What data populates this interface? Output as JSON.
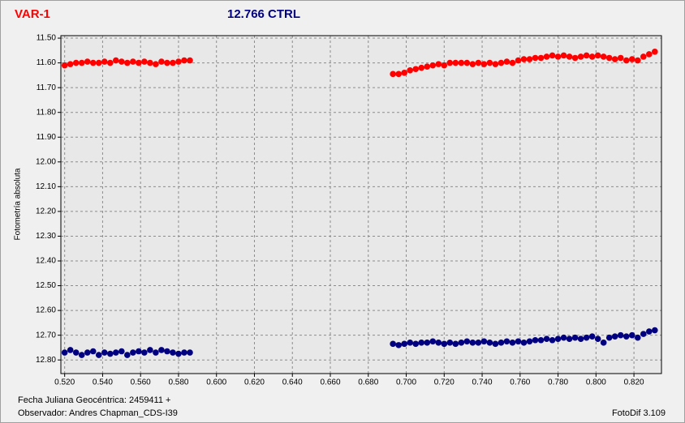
{
  "chart_data": {
    "type": "scatter",
    "ylabel": "Fotometría absoluta",
    "xlabel": "Fecha Juliana Geocéntrica: 2459411 +",
    "observer": "Observador: Andres Chapman_CDS-I39",
    "software": "FotoDif 3.109",
    "xlim": [
      0.518,
      0.8345
    ],
    "ylim": [
      11.49,
      12.855
    ],
    "y_reversed": true,
    "grid": true,
    "xticks": [
      {
        "value": 0.52,
        "label": "0.520"
      },
      {
        "value": 0.54,
        "label": "0.540"
      },
      {
        "value": 0.56,
        "label": "0.560"
      },
      {
        "value": 0.58,
        "label": "0.580"
      },
      {
        "value": 0.6,
        "label": "0.600"
      },
      {
        "value": 0.62,
        "label": "0.620"
      },
      {
        "value": 0.64,
        "label": "0.640"
      },
      {
        "value": 0.66,
        "label": "0.660"
      },
      {
        "value": 0.68,
        "label": "0.680"
      },
      {
        "value": 0.7,
        "label": "0.700"
      },
      {
        "value": 0.72,
        "label": "0.720"
      },
      {
        "value": 0.74,
        "label": "0.740"
      },
      {
        "value": 0.76,
        "label": "0.760"
      },
      {
        "value": 0.78,
        "label": "0.780"
      },
      {
        "value": 0.8,
        "label": "0.800"
      },
      {
        "value": 0.82,
        "label": "0.820"
      }
    ],
    "yticks": [
      {
        "value": 11.5,
        "label": "11.50"
      },
      {
        "value": 11.6,
        "label": "11.60"
      },
      {
        "value": 11.7,
        "label": "11.70"
      },
      {
        "value": 11.8,
        "label": "11.80"
      },
      {
        "value": 11.9,
        "label": "11.90"
      },
      {
        "value": 12.0,
        "label": "12.00"
      },
      {
        "value": 12.1,
        "label": "12.10"
      },
      {
        "value": 12.2,
        "label": "12.20"
      },
      {
        "value": 12.3,
        "label": "12.30"
      },
      {
        "value": 12.4,
        "label": "12.40"
      },
      {
        "value": 12.5,
        "label": "12.50"
      },
      {
        "value": 12.6,
        "label": "12.60"
      },
      {
        "value": 12.7,
        "label": "12.70"
      },
      {
        "value": 12.8,
        "label": "12.80"
      }
    ],
    "x": [
      0.52,
      0.523,
      0.526,
      0.529,
      0.532,
      0.535,
      0.538,
      0.541,
      0.544,
      0.547,
      0.55,
      0.553,
      0.556,
      0.559,
      0.562,
      0.565,
      0.568,
      0.571,
      0.574,
      0.577,
      0.58,
      0.583,
      0.586,
      0.693,
      0.696,
      0.699,
      0.702,
      0.705,
      0.708,
      0.711,
      0.714,
      0.717,
      0.72,
      0.723,
      0.726,
      0.729,
      0.732,
      0.735,
      0.738,
      0.741,
      0.744,
      0.747,
      0.75,
      0.753,
      0.756,
      0.759,
      0.762,
      0.765,
      0.768,
      0.771,
      0.774,
      0.777,
      0.78,
      0.783,
      0.786,
      0.789,
      0.792,
      0.795,
      0.798,
      0.801,
      0.804,
      0.807,
      0.81,
      0.813,
      0.816,
      0.819,
      0.822,
      0.825,
      0.828,
      0.831
    ],
    "series": [
      {
        "name": "VAR-1",
        "color": "#ff0000",
        "values": [
          11.61,
          11.605,
          11.6,
          11.6,
          11.595,
          11.6,
          11.6,
          11.595,
          11.6,
          11.59,
          11.595,
          11.6,
          11.595,
          11.6,
          11.595,
          11.6,
          11.605,
          11.595,
          11.6,
          11.6,
          11.595,
          11.59,
          11.59,
          11.645,
          11.645,
          11.64,
          11.63,
          11.625,
          11.62,
          11.615,
          11.61,
          11.605,
          11.61,
          11.6,
          11.6,
          11.6,
          11.6,
          11.605,
          11.6,
          11.605,
          11.6,
          11.605,
          11.6,
          11.595,
          11.6,
          11.59,
          11.585,
          11.585,
          11.58,
          11.58,
          11.575,
          11.57,
          11.575,
          11.57,
          11.575,
          11.58,
          11.575,
          11.57,
          11.575,
          11.57,
          11.575,
          11.58,
          11.585,
          11.58,
          11.59,
          11.585,
          11.59,
          11.575,
          11.565,
          11.555
        ]
      },
      {
        "name": "12.766 CTRL",
        "color": "#000080",
        "values": [
          12.77,
          12.76,
          12.77,
          12.78,
          12.77,
          12.765,
          12.78,
          12.77,
          12.775,
          12.77,
          12.765,
          12.78,
          12.77,
          12.765,
          12.77,
          12.76,
          12.77,
          12.76,
          12.765,
          12.77,
          12.775,
          12.77,
          12.77,
          12.735,
          12.74,
          12.735,
          12.73,
          12.735,
          12.73,
          12.73,
          12.725,
          12.73,
          12.735,
          12.73,
          12.735,
          12.73,
          12.725,
          12.73,
          12.73,
          12.725,
          12.73,
          12.735,
          12.73,
          12.725,
          12.73,
          12.725,
          12.73,
          12.725,
          12.72,
          12.72,
          12.715,
          12.72,
          12.715,
          12.71,
          12.715,
          12.71,
          12.715,
          12.71,
          12.705,
          12.715,
          12.73,
          12.71,
          12.705,
          12.7,
          12.705,
          12.7,
          12.71,
          12.695,
          12.685,
          12.68
        ]
      }
    ]
  }
}
